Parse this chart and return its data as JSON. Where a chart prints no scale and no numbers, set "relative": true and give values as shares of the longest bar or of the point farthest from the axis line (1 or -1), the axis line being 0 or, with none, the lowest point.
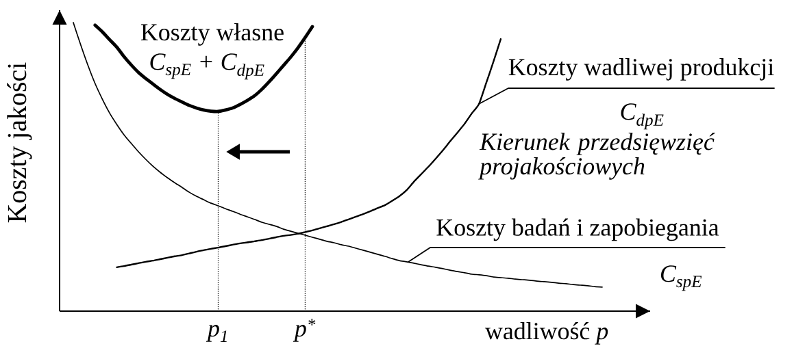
{
  "chart_data": {
    "type": "line",
    "relative": true,
    "xlabel": "wadliwość *p*",
    "ylabel": "Koszty jakości",
    "categories": [
      null,
      null,
      null,
      null,
      null,
      null,
      null,
      null,
      null,
      null,
      null,
      null,
      null,
      null,
      null,
      null,
      null,
      null,
      null,
      null,
      "p$_{1}$",
      null,
      null,
      null,
      null,
      null,
      null,
      null,
      null,
      null,
      null,
      null,
      "p$^{*}$",
      null,
      null,
      null,
      null,
      null,
      null,
      null,
      null,
      null,
      null,
      null,
      null,
      null,
      null,
      null,
      null,
      null,
      null,
      null,
      null,
      null,
      null,
      null,
      null,
      null,
      null,
      null,
      null,
      null,
      null,
      null,
      null,
      null,
      null,
      null,
      null,
      null,
      null,
      null,
      null,
      null
    ],
    "series": [
      {
        "color": "#000000",
        "values": [
          1.0,
          0.924,
          0.853,
          0.789,
          0.735,
          0.687,
          0.647,
          0.611,
          0.581,
          0.552,
          0.526,
          0.502,
          0.481,
          0.462,
          0.445,
          0.429,
          0.412,
          0.398,
          0.386,
          0.374,
          0.365,
          0.355,
          0.346,
          0.336,
          0.327,
          0.318,
          0.308,
          0.301,
          0.294,
          0.284,
          0.277,
          0.27,
          0.263,
          0.256,
          0.249,
          0.242,
          0.237,
          0.23,
          0.225,
          0.218,
          0.211,
          0.204,
          0.197,
          0.19,
          0.182,
          0.175,
          0.171,
          0.166,
          0.161,
          0.156,
          0.152,
          0.147,
          0.142,
          0.137,
          0.133,
          0.128,
          0.126,
          0.123,
          0.118,
          0.116,
          0.114,
          0.111,
          0.109,
          0.107,
          0.104,
          0.102,
          0.1,
          0.097,
          0.095,
          0.092,
          0.09,
          0.088,
          0.085,
          0.083
        ]
      },
      {
        "color": "#000000",
        "values": [
          null,
          null,
          null,
          null,
          null,
          null,
          0.152,
          0.156,
          0.161,
          0.166,
          0.171,
          0.175,
          0.18,
          0.185,
          0.19,
          0.194,
          0.2,
          0.206,
          0.211,
          0.216,
          0.22,
          0.225,
          0.23,
          0.235,
          0.238,
          0.242,
          0.246,
          0.251,
          0.256,
          0.261,
          0.264,
          0.268,
          0.274,
          0.28,
          0.287,
          0.294,
          0.301,
          0.309,
          0.318,
          0.327,
          0.336,
          0.346,
          0.357,
          0.367,
          0.382,
          0.398,
          0.419,
          0.448,
          0.474,
          0.5,
          0.528,
          0.557,
          0.588,
          0.618,
          0.649,
          0.685,
          0.718,
          0.791,
          0.865,
          0.943,
          null,
          null,
          null,
          null,
          null,
          null,
          null,
          null,
          null,
          null,
          null,
          null,
          null,
          null
        ]
      },
      {
        "color": "#000000",
        "values": [
          null,
          null,
          null,
          0.991,
          0.968,
          0.941,
          0.915,
          0.882,
          0.853,
          0.827,
          0.806,
          0.787,
          0.768,
          0.751,
          0.737,
          0.725,
          0.713,
          0.704,
          0.697,
          0.693,
          0.692,
          0.697,
          0.704,
          0.716,
          0.73,
          0.746,
          0.768,
          0.794,
          0.822,
          0.851,
          0.88,
          0.912,
          0.948,
          0.986,
          null,
          null,
          null,
          null,
          null,
          null,
          null,
          null,
          null,
          null,
          null,
          null,
          null,
          null,
          null,
          null,
          null,
          null,
          null,
          null,
          null,
          null,
          null,
          null,
          null,
          null,
          null,
          null,
          null,
          null,
          null,
          null,
          null,
          null,
          null,
          null,
          null,
          null,
          null,
          null
        ]
      }
    ],
    "ref_lines": [
      {
        "axis": "x",
        "value": "p$_{1}$",
        "line_style": "dotted",
        "color": "#000000"
      },
      {
        "axis": "x",
        "value": "p$^{*}$",
        "line_style": "dotted",
        "color": "#000000"
      }
    ],
    "annotations": [
      "Koszty własne",
      "C$_{spE}$ + C$_{dpE}$",
      "Kierunek przedsięwzięć projakościowych",
      "Koszty wadliwej produkcji",
      "C$_{dpE}$",
      "Koszty badań i zapobiegania",
      "C$_{spE}$"
    ]
  }
}
